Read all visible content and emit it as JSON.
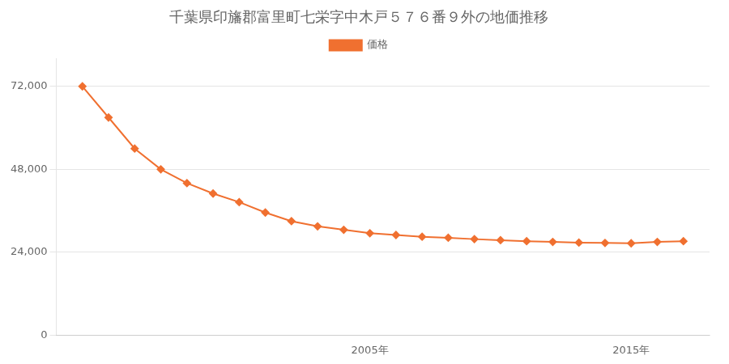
{
  "chart_data": {
    "type": "line",
    "title": "千葉県印旛郡富里町七栄字中木戸５７６番９外の地価推移",
    "x": [
      1994,
      1995,
      1996,
      1997,
      1998,
      1999,
      2000,
      2001,
      2002,
      2003,
      2004,
      2005,
      2006,
      2007,
      2008,
      2009,
      2010,
      2011,
      2012,
      2013,
      2014,
      2015,
      2016,
      2017
    ],
    "series": [
      {
        "name": "価格",
        "color": "#f07030",
        "marker": "diamond",
        "values": [
          72000,
          63000,
          54000,
          48000,
          44000,
          41000,
          38500,
          35500,
          33000,
          31500,
          30500,
          29500,
          29000,
          28500,
          28200,
          27800,
          27500,
          27200,
          27000,
          26800,
          26700,
          26600,
          27000,
          27200
        ]
      }
    ],
    "xlim": [
      1993,
      2018
    ],
    "xticks": [
      {
        "value": 2005,
        "label": "2005年"
      },
      {
        "value": 2015,
        "label": "2015年"
      }
    ],
    "ylim": [
      0,
      80000
    ],
    "yticks": [
      0,
      {
        "value": 24000,
        "label": "24,000"
      },
      {
        "value": 48000,
        "label": "48,000"
      },
      {
        "value": 72000,
        "label": "72,000"
      }
    ],
    "grid": "y",
    "legend": "top"
  }
}
